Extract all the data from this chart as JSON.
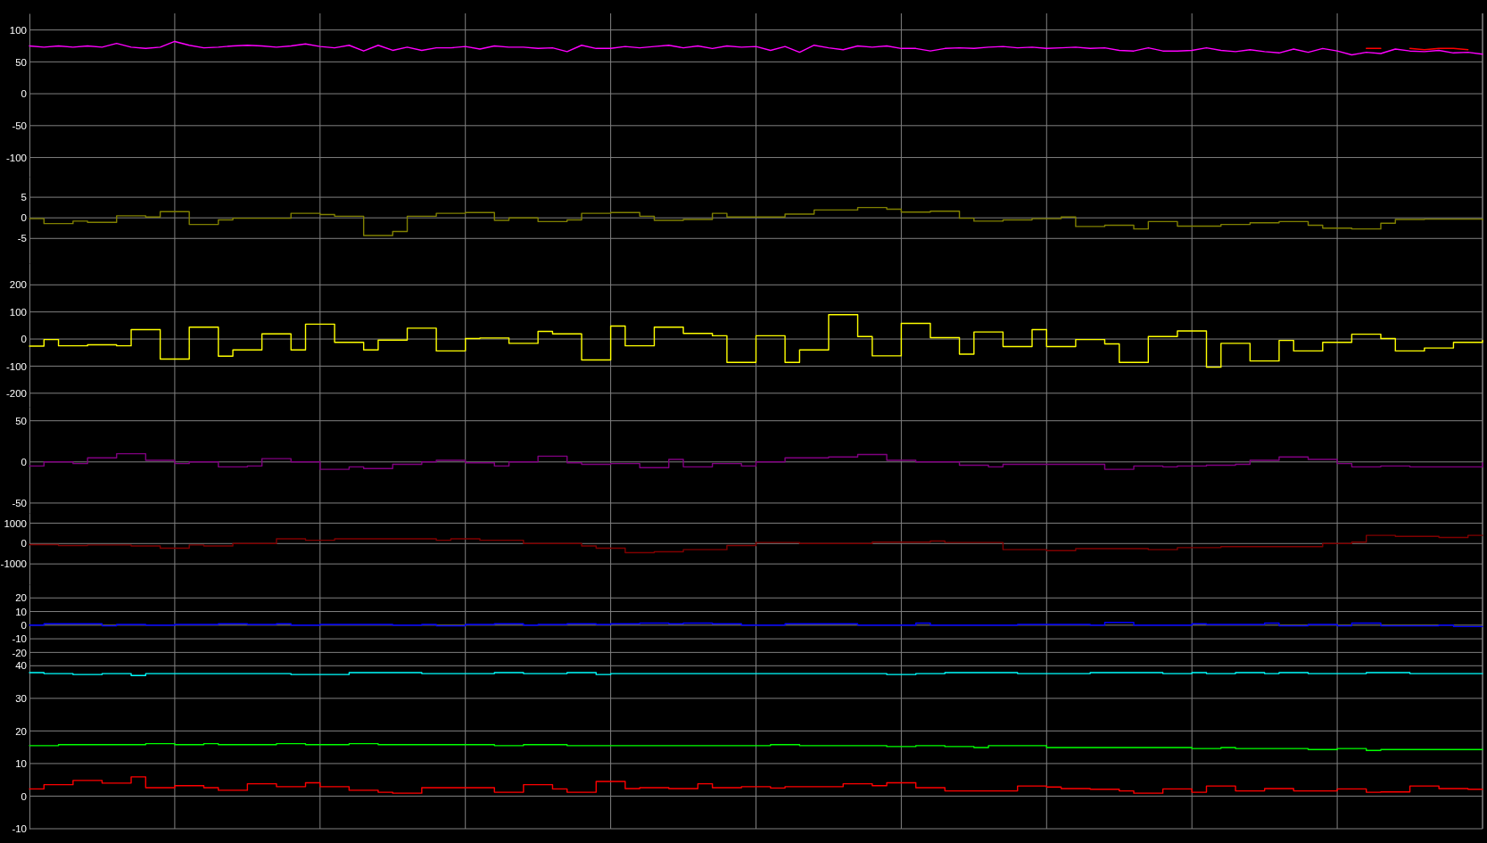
{
  "chart_data": [
    {
      "type": "line",
      "categories": [
        null,
        null,
        null,
        null,
        null,
        null,
        null,
        null,
        null,
        null,
        null,
        null,
        null,
        null,
        null,
        null,
        null,
        null,
        null,
        null,
        null,
        null,
        null,
        null,
        null,
        null,
        null,
        null,
        null,
        null,
        null,
        null,
        null,
        null,
        null,
        null,
        null,
        null,
        null,
        null,
        null,
        null,
        null,
        null,
        null,
        null,
        null,
        null,
        null,
        null,
        null,
        null,
        null,
        null,
        null,
        null,
        null,
        null,
        null,
        null,
        null,
        null,
        null,
        null,
        null,
        null,
        null,
        null,
        null,
        null,
        null,
        null,
        null,
        null,
        null,
        null,
        null,
        null,
        null,
        null,
        null,
        null,
        null,
        null,
        null,
        null,
        null,
        null,
        null,
        null,
        null,
        null,
        null,
        null,
        null,
        null,
        null,
        null,
        null,
        null,
        null
      ],
      "ylim": [
        -130,
        126
      ],
      "yticks": [
        100,
        50,
        0,
        -50,
        -100
      ],
      "grid": true,
      "tick_labels": "y",
      "series": [
        {
          "color": "#ff0000",
          "values": [
            null,
            null,
            null,
            null,
            null,
            null,
            null,
            null,
            null,
            null,
            null,
            null,
            null,
            null,
            null,
            null,
            null,
            null,
            null,
            null,
            null,
            null,
            null,
            null,
            null,
            null,
            null,
            null,
            null,
            null,
            null,
            null,
            null,
            null,
            null,
            null,
            null,
            null,
            null,
            null,
            null,
            null,
            null,
            null,
            null,
            null,
            null,
            null,
            null,
            null,
            null,
            null,
            null,
            null,
            null,
            null,
            null,
            null,
            null,
            null,
            null,
            null,
            null,
            null,
            null,
            null,
            null,
            null,
            null,
            null,
            null,
            null,
            null,
            null,
            null,
            null,
            null,
            null,
            null,
            null,
            null,
            null,
            null,
            null,
            null,
            null,
            null,
            null,
            null,
            null,
            null,
            null,
            71,
            71,
            null,
            71,
            69,
            71,
            71,
            69,
            null
          ]
        },
        {
          "color": "#ff00ff",
          "values": [
            75,
            73,
            75,
            73,
            75,
            73,
            79,
            73,
            71,
            73,
            82,
            76,
            72,
            73,
            75,
            76,
            75,
            73,
            75,
            78,
            74,
            72,
            76,
            67,
            76,
            68,
            73,
            68,
            72,
            72,
            74,
            70,
            75,
            73,
            73,
            71,
            72,
            66,
            76,
            71,
            71,
            74,
            72,
            74,
            76,
            72,
            75,
            71,
            75,
            73,
            74,
            68,
            74,
            65,
            76,
            72,
            69,
            75,
            73,
            75,
            71,
            71,
            67,
            71,
            72,
            71,
            73,
            74,
            72,
            73,
            71,
            72,
            73,
            71,
            72,
            68,
            67,
            72,
            67,
            67,
            68,
            72,
            68,
            66,
            69,
            66,
            64,
            70,
            65,
            71,
            67,
            61,
            65,
            63,
            70,
            67,
            66,
            68,
            64,
            65,
            62
          ]
        }
      ]
    },
    {
      "type": "step",
      "categories": [
        null,
        null,
        null,
        null,
        null,
        null,
        null,
        null,
        null,
        null,
        null,
        null,
        null,
        null,
        null,
        null,
        null,
        null,
        null,
        null,
        null,
        null,
        null,
        null,
        null,
        null,
        null,
        null,
        null,
        null,
        null,
        null,
        null,
        null,
        null,
        null,
        null,
        null,
        null,
        null,
        null,
        null,
        null,
        null,
        null,
        null,
        null,
        null,
        null,
        null,
        null,
        null,
        null,
        null,
        null,
        null,
        null,
        null,
        null,
        null,
        null,
        null,
        null,
        null,
        null,
        null,
        null,
        null,
        null,
        null,
        null,
        null,
        null,
        null,
        null,
        null,
        null,
        null,
        null,
        null,
        null,
        null,
        null,
        null,
        null,
        null,
        null,
        null,
        null,
        null,
        null,
        null,
        null,
        null,
        null,
        null,
        null,
        null,
        null,
        null,
        null
      ],
      "ylim": [
        -11,
        10
      ],
      "yticks": [
        5,
        0,
        -5
      ],
      "grid": true,
      "tick_labels": "y",
      "series": [
        {
          "color": "#808000",
          "values": [
            -0.2,
            -1.4,
            -1.4,
            -0.8,
            -1.1,
            -1.1,
            0.5,
            0.5,
            0.2,
            1.5,
            1.5,
            -1.6,
            -1.6,
            -0.5,
            -0.1,
            -0.1,
            -0.1,
            -0.1,
            1.1,
            1.1,
            0.8,
            0.4,
            0.4,
            -4.3,
            -4.3,
            -3.3,
            0.4,
            0.4,
            1.1,
            1.1,
            1.3,
            1.3,
            -0.6,
            0,
            0,
            -0.9,
            -0.9,
            -0.5,
            1.1,
            1.1,
            1.3,
            1.3,
            0.4,
            -0.6,
            -0.6,
            -0.4,
            -0.4,
            1.1,
            0.2,
            0.2,
            0.2,
            0.2,
            0.9,
            0.9,
            1.9,
            1.9,
            1.9,
            2.5,
            2.5,
            2.1,
            1.4,
            1.4,
            1.6,
            1.6,
            -0.1,
            -0.8,
            -0.8,
            -0.5,
            -0.5,
            -0.2,
            -0.2,
            0.2,
            -2.1,
            -2.1,
            -1.8,
            -1.8,
            -2.7,
            -0.9,
            -0.9,
            -2.0,
            -2.0,
            -2.0,
            -1.6,
            -1.6,
            -1.2,
            -1.2,
            -0.9,
            -0.9,
            -1.8,
            -2.5,
            -2.5,
            -2.7,
            -2.7,
            -1.3,
            -0.4,
            -0.4,
            -0.3,
            -0.3,
            -0.3,
            -0.3,
            -0.5
          ]
        }
      ]
    },
    {
      "type": "step",
      "categories": [
        null,
        null,
        null,
        null,
        null,
        null,
        null,
        null,
        null,
        null,
        null,
        null,
        null,
        null,
        null,
        null,
        null,
        null,
        null,
        null,
        null,
        null,
        null,
        null,
        null,
        null,
        null,
        null,
        null,
        null,
        null,
        null,
        null,
        null,
        null,
        null,
        null,
        null,
        null,
        null,
        null,
        null,
        null,
        null,
        null,
        null,
        null,
        null,
        null,
        null,
        null,
        null,
        null,
        null,
        null,
        null,
        null,
        null,
        null,
        null,
        null,
        null,
        null,
        null,
        null,
        null,
        null,
        null,
        null,
        null,
        null,
        null,
        null,
        null,
        null,
        null,
        null,
        null,
        null,
        null,
        null,
        null,
        null,
        null,
        null,
        null,
        null,
        null,
        null,
        null,
        null,
        null,
        null,
        null,
        null,
        null,
        null,
        null,
        null,
        null,
        null
      ],
      "ylim": [
        -250,
        280
      ],
      "yticks": [
        200,
        100,
        0,
        -100,
        -200
      ],
      "grid": true,
      "tick_labels": "y",
      "series": [
        {
          "color": "#ffff00",
          "values": [
            -26,
            -2,
            -25,
            -25,
            -21,
            -21,
            -25,
            35,
            35,
            -74,
            -74,
            44,
            44,
            -63,
            -40,
            -40,
            19,
            19,
            -40,
            55,
            55,
            -12,
            -12,
            -40,
            -4,
            -4,
            40,
            40,
            -44,
            -44,
            2,
            4,
            4,
            -16,
            -16,
            28,
            19,
            19,
            -77,
            -77,
            48,
            -25,
            -25,
            44,
            44,
            21,
            21,
            12,
            -86,
            -86,
            12,
            12,
            -86,
            -40,
            -40,
            90,
            90,
            9,
            -62,
            -62,
            58,
            58,
            5,
            5,
            -56,
            26,
            26,
            -28,
            -28,
            35,
            -28,
            -28,
            -2,
            -2,
            -18,
            -86,
            -86,
            9,
            9,
            30,
            30,
            -104,
            -16,
            -16,
            -81,
            -81,
            -5,
            -44,
            -44,
            -12,
            -12,
            18,
            18,
            2,
            -44,
            -44,
            -33,
            -33,
            -12,
            -12,
            -5
          ]
        }
      ]
    },
    {
      "type": "step",
      "categories": [
        null,
        null,
        null,
        null,
        null,
        null,
        null,
        null,
        null,
        null,
        null,
        null,
        null,
        null,
        null,
        null,
        null,
        null,
        null,
        null,
        null,
        null,
        null,
        null,
        null,
        null,
        null,
        null,
        null,
        null,
        null,
        null,
        null,
        null,
        null,
        null,
        null,
        null,
        null,
        null,
        null,
        null,
        null,
        null,
        null,
        null,
        null,
        null,
        null,
        null,
        null,
        null,
        null,
        null,
        null,
        null,
        null,
        null,
        null,
        null,
        null,
        null,
        null,
        null,
        null,
        null,
        null,
        null,
        null,
        null,
        null,
        null,
        null,
        null,
        null,
        null,
        null,
        null,
        null,
        null,
        null,
        null,
        null,
        null,
        null,
        null,
        null,
        null,
        null,
        null,
        null,
        null,
        null,
        null,
        null,
        null,
        null,
        null,
        null,
        null,
        null
      ],
      "ylim": [
        -62,
        67
      ],
      "yticks": [
        50,
        0,
        -50
      ],
      "grid": true,
      "tick_labels": "y",
      "series": [
        {
          "color": "#800080",
          "values": [
            -5,
            0,
            0,
            -2,
            5,
            5,
            10,
            10,
            2,
            2,
            -2,
            0,
            0,
            -6,
            -6,
            -5,
            4,
            4,
            0,
            0,
            -9,
            -9,
            -6,
            -8,
            -8,
            -3,
            -3,
            0,
            2,
            2,
            -1,
            -1,
            -5,
            0,
            0,
            7,
            7,
            -1,
            -3,
            -3,
            -2,
            -2,
            -7,
            -7,
            3,
            -6,
            -6,
            -2,
            -2,
            -5,
            0,
            0,
            5,
            5,
            5,
            6,
            6,
            9,
            9,
            2,
            2,
            0,
            0,
            0,
            -4,
            -4,
            -6,
            -3,
            -3,
            -3,
            -3,
            -3,
            -3,
            -3,
            -9,
            -9,
            -5,
            -5,
            -6,
            -5,
            -5,
            -4,
            -4,
            -3,
            2,
            2,
            6,
            6,
            3,
            3,
            -2,
            -6,
            -6,
            -5,
            -5,
            -6,
            -6,
            -6,
            -6,
            -6,
            -1
          ]
        }
      ]
    },
    {
      "type": "step",
      "categories": [
        null,
        null,
        null,
        null,
        null,
        null,
        null,
        null,
        null,
        null,
        null,
        null,
        null,
        null,
        null,
        null,
        null,
        null,
        null,
        null,
        null,
        null,
        null,
        null,
        null,
        null,
        null,
        null,
        null,
        null,
        null,
        null,
        null,
        null,
        null,
        null,
        null,
        null,
        null,
        null,
        null,
        null,
        null,
        null,
        null,
        null,
        null,
        null,
        null,
        null,
        null,
        null,
        null,
        null,
        null,
        null,
        null,
        null,
        null,
        null,
        null,
        null,
        null,
        null,
        null,
        null,
        null,
        null,
        null,
        null,
        null,
        null,
        null,
        null,
        null,
        null,
        null,
        null,
        null,
        null,
        null,
        null,
        null,
        null,
        null,
        null,
        null,
        null,
        null,
        null,
        null,
        null,
        null,
        null,
        null,
        null,
        null,
        null,
        null,
        null,
        null
      ],
      "ylim": [
        -2000,
        1500
      ],
      "yticks": [
        1000,
        0,
        -1000
      ],
      "grid": true,
      "tick_labels": "y",
      "series": [
        {
          "color": "#800000",
          "values": [
            -50,
            -50,
            -100,
            -100,
            -70,
            -70,
            -70,
            -120,
            -120,
            -230,
            -230,
            -70,
            -120,
            -120,
            0,
            0,
            0,
            230,
            230,
            160,
            160,
            230,
            230,
            230,
            230,
            230,
            230,
            230,
            160,
            230,
            230,
            160,
            160,
            160,
            0,
            0,
            0,
            0,
            -120,
            -230,
            -230,
            -450,
            -450,
            -400,
            -400,
            -300,
            -300,
            -300,
            -100,
            -100,
            50,
            50,
            50,
            0,
            0,
            0,
            0,
            0,
            70,
            70,
            70,
            70,
            120,
            50,
            50,
            50,
            50,
            -300,
            -300,
            -300,
            -350,
            -350,
            -250,
            -250,
            -250,
            -250,
            -250,
            -300,
            -300,
            -200,
            -200,
            -200,
            -150,
            -150,
            -150,
            -150,
            -150,
            -150,
            -150,
            0,
            0,
            70,
            400,
            400,
            350,
            350,
            350,
            300,
            300,
            400,
            400
          ]
        }
      ]
    },
    {
      "type": "step",
      "categories": [
        null,
        null,
        null,
        null,
        null,
        null,
        null,
        null,
        null,
        null,
        null,
        null,
        null,
        null,
        null,
        null,
        null,
        null,
        null,
        null,
        null,
        null,
        null,
        null,
        null,
        null,
        null,
        null,
        null,
        null,
        null,
        null,
        null,
        null,
        null,
        null,
        null,
        null,
        null,
        null,
        null,
        null,
        null,
        null,
        null,
        null,
        null,
        null,
        null,
        null,
        null,
        null,
        null,
        null,
        null,
        null,
        null,
        null,
        null,
        null,
        null,
        null,
        null,
        null,
        null,
        null,
        null,
        null,
        null,
        null,
        null,
        null,
        null,
        null,
        null,
        null,
        null,
        null,
        null,
        null,
        null,
        null,
        null,
        null,
        null,
        null,
        null,
        null,
        null,
        null,
        null,
        null,
        null,
        null,
        null,
        null,
        null,
        null,
        null,
        null,
        null
      ],
      "ylim": [
        -25,
        30
      ],
      "yticks": [
        20,
        10,
        0,
        -10,
        -20
      ],
      "grid": true,
      "tick_labels": "y",
      "series": [
        {
          "color": "#0000ff",
          "values": [
            0,
            1,
            1,
            1,
            1,
            -0.5,
            0.5,
            0.5,
            0,
            0,
            0.5,
            0.5,
            0.5,
            1,
            1,
            0.5,
            0.5,
            1,
            0,
            0,
            0.5,
            0.5,
            0.5,
            0.5,
            0.5,
            0,
            0,
            0.5,
            -0.5,
            -0.5,
            0.5,
            0.5,
            1,
            1,
            0,
            0.5,
            0.5,
            1,
            1,
            0.5,
            1,
            1,
            1.5,
            1.5,
            1,
            1.5,
            1.5,
            1,
            1,
            0,
            0,
            0,
            1,
            1,
            1,
            1,
            1,
            0,
            0,
            0,
            0,
            1.5,
            0,
            0,
            0,
            0,
            0,
            0,
            0.5,
            0.5,
            0.5,
            0.5,
            0.5,
            0,
            2,
            2,
            0,
            0,
            0,
            0,
            1,
            0.5,
            0.5,
            0.5,
            0.5,
            1.5,
            -0.5,
            -0.5,
            0.5,
            0.5,
            -0.5,
            1.5,
            1.5,
            -0.5,
            -0.5,
            -0.5,
            -0.5,
            0,
            -1,
            -1,
            -1
          ]
        }
      ]
    },
    {
      "type": "step",
      "categories": [
        null,
        null,
        null,
        null,
        null,
        null,
        null,
        null,
        null,
        null,
        null,
        null,
        null,
        null,
        null,
        null,
        null,
        null,
        null,
        null,
        null,
        null,
        null,
        null,
        null,
        null,
        null,
        null,
        null,
        null,
        null,
        null,
        null,
        null,
        null,
        null,
        null,
        null,
        null,
        null,
        null,
        null,
        null,
        null,
        null,
        null,
        null,
        null,
        null,
        null,
        null,
        null,
        null,
        null,
        null,
        null,
        null,
        null,
        null,
        null,
        null,
        null,
        null,
        null,
        null,
        null,
        null,
        null,
        null,
        null,
        null,
        null,
        null,
        null,
        null,
        null,
        null,
        null,
        null,
        null,
        null,
        null,
        null,
        null,
        null,
        null,
        null,
        null,
        null,
        null,
        null,
        null,
        null,
        null,
        null,
        null,
        null,
        null,
        null,
        null,
        null
      ],
      "ylim": [
        -10,
        42
      ],
      "yticks": [
        40,
        30,
        20,
        10,
        0,
        -10
      ],
      "grid": true,
      "tick_labels": "y",
      "series": [
        {
          "color": "#00ffff",
          "values": [
            37.9,
            37.6,
            37.6,
            37.3,
            37.3,
            37.6,
            37.6,
            37.0,
            37.6,
            37.6,
            37.6,
            37.6,
            37.6,
            37.6,
            37.6,
            37.6,
            37.6,
            37.6,
            37.3,
            37.3,
            37.3,
            37.3,
            37.9,
            37.9,
            37.9,
            37.9,
            37.9,
            37.6,
            37.6,
            37.6,
            37.6,
            37.6,
            37.9,
            37.9,
            37.6,
            37.6,
            37.6,
            37.9,
            37.9,
            37.3,
            37.6,
            37.6,
            37.6,
            37.6,
            37.6,
            37.6,
            37.6,
            37.6,
            37.6,
            37.6,
            37.6,
            37.6,
            37.6,
            37.6,
            37.6,
            37.6,
            37.6,
            37.6,
            37.6,
            37.3,
            37.3,
            37.6,
            37.6,
            37.9,
            37.9,
            37.9,
            37.9,
            37.9,
            37.6,
            37.6,
            37.6,
            37.6,
            37.6,
            37.9,
            37.9,
            37.9,
            37.9,
            37.9,
            37.6,
            37.6,
            37.9,
            37.6,
            37.6,
            37.9,
            37.9,
            37.6,
            37.9,
            37.9,
            37.6,
            37.6,
            37.6,
            37.6,
            37.9,
            37.9,
            37.9,
            37.6,
            37.6,
            37.6,
            37.6,
            37.6,
            37.6
          ]
        },
        {
          "color": "#00ff00",
          "values": [
            15.5,
            15.5,
            15.8,
            15.8,
            15.8,
            15.8,
            15.8,
            15.8,
            16.1,
            16.1,
            15.8,
            15.8,
            16.1,
            15.8,
            15.8,
            15.8,
            15.8,
            16.1,
            16.1,
            15.8,
            15.8,
            15.8,
            16.1,
            16.1,
            15.8,
            15.8,
            15.8,
            15.8,
            15.8,
            15.8,
            15.8,
            15.8,
            15.5,
            15.5,
            15.8,
            15.8,
            15.8,
            15.5,
            15.5,
            15.5,
            15.5,
            15.5,
            15.5,
            15.5,
            15.5,
            15.5,
            15.5,
            15.5,
            15.5,
            15.5,
            15.5,
            15.8,
            15.8,
            15.5,
            15.5,
            15.5,
            15.5,
            15.5,
            15.5,
            15.2,
            15.2,
            15.5,
            15.5,
            15.2,
            15.2,
            14.9,
            15.5,
            15.5,
            15.5,
            15.5,
            14.9,
            14.9,
            14.9,
            14.9,
            14.9,
            14.9,
            14.9,
            14.9,
            14.9,
            14.9,
            14.6,
            14.6,
            14.9,
            14.6,
            14.6,
            14.6,
            14.6,
            14.6,
            14.3,
            14.3,
            14.6,
            14.6,
            14.0,
            14.3,
            14.3,
            14.3,
            14.3,
            14.3,
            14.3,
            14.3,
            14.3
          ]
        },
        {
          "color": "#ff0000",
          "values": [
            2.2,
            3.5,
            3.5,
            4.8,
            4.8,
            4.0,
            4.0,
            5.9,
            2.6,
            2.6,
            3.2,
            3.2,
            2.6,
            1.8,
            1.8,
            3.8,
            3.8,
            2.9,
            2.9,
            4.1,
            2.9,
            2.9,
            1.8,
            1.8,
            1.2,
            0.9,
            0.9,
            2.6,
            2.6,
            2.6,
            2.6,
            2.6,
            1.2,
            1.2,
            3.5,
            3.5,
            2.2,
            1.2,
            1.2,
            4.5,
            4.5,
            2.3,
            2.6,
            2.6,
            2.3,
            2.3,
            3.8,
            2.6,
            2.6,
            2.9,
            2.9,
            2.5,
            2.9,
            2.9,
            2.9,
            2.9,
            3.8,
            3.8,
            3.2,
            4.1,
            4.1,
            2.6,
            2.6,
            1.6,
            1.6,
            1.6,
            1.6,
            1.6,
            3.1,
            3.1,
            2.8,
            2.3,
            2.3,
            2.1,
            2.1,
            1.6,
            0.9,
            0.9,
            2.2,
            2.2,
            1.2,
            3.1,
            3.1,
            1.6,
            1.6,
            2.3,
            2.3,
            1.6,
            1.6,
            1.6,
            2.2,
            2.2,
            1.2,
            1.3,
            1.3,
            3.1,
            3.1,
            2.3,
            2.3,
            2.1,
            2.1
          ]
        }
      ]
    }
  ]
}
